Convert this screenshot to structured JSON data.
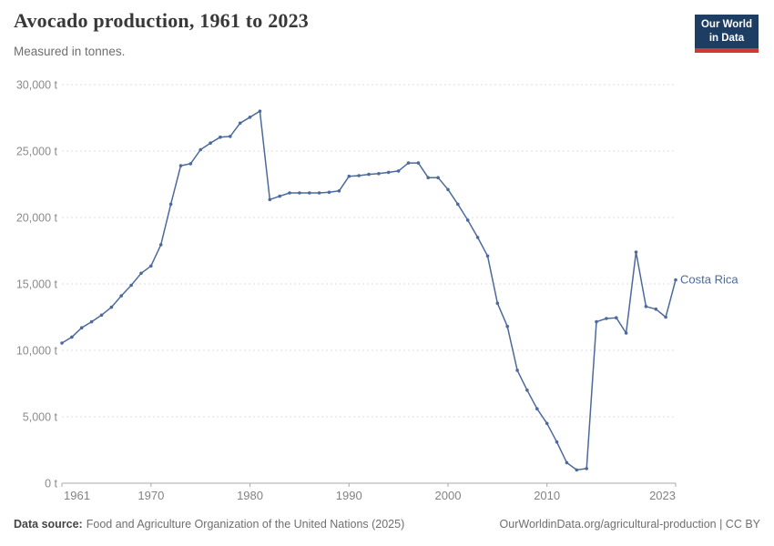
{
  "header": {
    "title": "Avocado production, 1961 to 2023",
    "subtitle": "Measured in tonnes."
  },
  "logo": {
    "line1": "Our World",
    "line2": "in Data",
    "bg_color": "#1d3d63",
    "stripe_color": "#cc3b31"
  },
  "chart_data": {
    "type": "line",
    "title": "Avocado production, 1961 to 2023",
    "xlabel": "",
    "ylabel": "tonnes",
    "unit_suffix": " t",
    "grid": "horizontal-dashed",
    "xlim": [
      1961,
      2023
    ],
    "ylim": [
      0,
      30000
    ],
    "xticks": [
      1961,
      1970,
      1980,
      1990,
      2000,
      2010,
      2023
    ],
    "yticks": [
      0,
      5000,
      10000,
      15000,
      20000,
      25000,
      30000
    ],
    "legend_position": "end-of-line",
    "series": [
      {
        "name": "Costa Rica",
        "color": "#4c6a9c",
        "x": [
          1961,
          1962,
          1963,
          1964,
          1965,
          1966,
          1967,
          1968,
          1969,
          1970,
          1971,
          1972,
          1973,
          1974,
          1975,
          1976,
          1977,
          1978,
          1979,
          1980,
          1981,
          1982,
          1983,
          1984,
          1985,
          1986,
          1987,
          1988,
          1989,
          1990,
          1991,
          1992,
          1993,
          1994,
          1995,
          1996,
          1997,
          1998,
          1999,
          2000,
          2001,
          2002,
          2003,
          2004,
          2005,
          2006,
          2007,
          2008,
          2009,
          2010,
          2011,
          2012,
          2013,
          2014,
          2015,
          2016,
          2017,
          2018,
          2019,
          2020,
          2021,
          2022,
          2023
        ],
        "values": [
          10550,
          11000,
          11700,
          12150,
          12650,
          13250,
          14100,
          14900,
          15800,
          16350,
          17950,
          21000,
          23900,
          24050,
          25100,
          25600,
          26050,
          26100,
          27100,
          27550,
          28000,
          21350,
          21600,
          21850,
          21850,
          21850,
          21850,
          21900,
          22000,
          23100,
          23150,
          23250,
          23300,
          23400,
          23500,
          24100,
          24100,
          23000,
          23000,
          22100,
          21000,
          19800,
          18500,
          17100,
          13550,
          11800,
          8500,
          7000,
          5600,
          4500,
          3100,
          1550,
          1000,
          1100,
          12150,
          12400,
          12450,
          11300,
          17400,
          13300,
          13100,
          12500,
          15300
        ]
      }
    ],
    "axis_colors": {
      "tick_label": "#838383",
      "axis_line": "#a9a9a9",
      "gridline": "#dcdcdc"
    }
  },
  "footer": {
    "source_label": "Data source:",
    "source_value": "Food and Agriculture Organization of the United Nations (2025)",
    "right_text": "OurWorldinData.org/agricultural-production | CC BY"
  }
}
